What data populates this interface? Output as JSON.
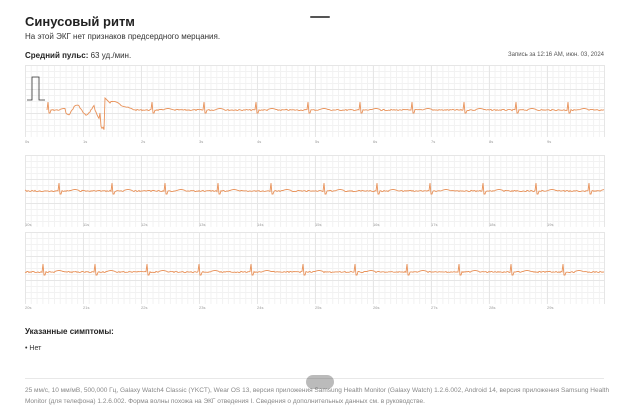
{
  "header": {
    "title": "Синусовый ритм",
    "subtitle": "На этой ЭКГ нет признаков предсердного мерцания."
  },
  "summary": {
    "avg_label": "Средний пульс:",
    "avg_value": "63 уд./мин.",
    "record_time": "Запись за 12:16 AM, июн. 03, 2024"
  },
  "colors": {
    "trace": "#e8925a",
    "grid_major": "#e6e6e6",
    "grid_minor": "#f2f2f2"
  },
  "strips": [
    {
      "ticks": [
        "0s",
        "1s",
        "2s",
        "3s",
        "4s",
        "5s",
        "6s",
        "7s",
        "8s",
        "9s"
      ]
    },
    {
      "ticks": [
        "10s",
        "11s",
        "12s",
        "13s",
        "14s",
        "15s",
        "16s",
        "17s",
        "18s",
        "19s"
      ]
    },
    {
      "ticks": [
        "20s",
        "21s",
        "22s",
        "23s",
        "24s",
        "25s",
        "26s",
        "27s",
        "28s",
        "29s"
      ]
    }
  ],
  "symptoms": {
    "title": "Указанные симптомы:",
    "items": [
      "Нет"
    ]
  },
  "footer": {
    "text": "25 мм/с, 10 мм/мВ, 500,000 Гц, Galaxy Watch4 Classic (YKCT), Wear OS 13, версия приложения Samsung Health Monitor (Galaxy Watch) 1.2.6.002, Android 14, версия приложения Samsung Health Monitor (для телефона) 1.2.6.002. Форма волны похожа на ЭКГ отведения I. Сведения о дополнительных данных см. в руководстве."
  }
}
